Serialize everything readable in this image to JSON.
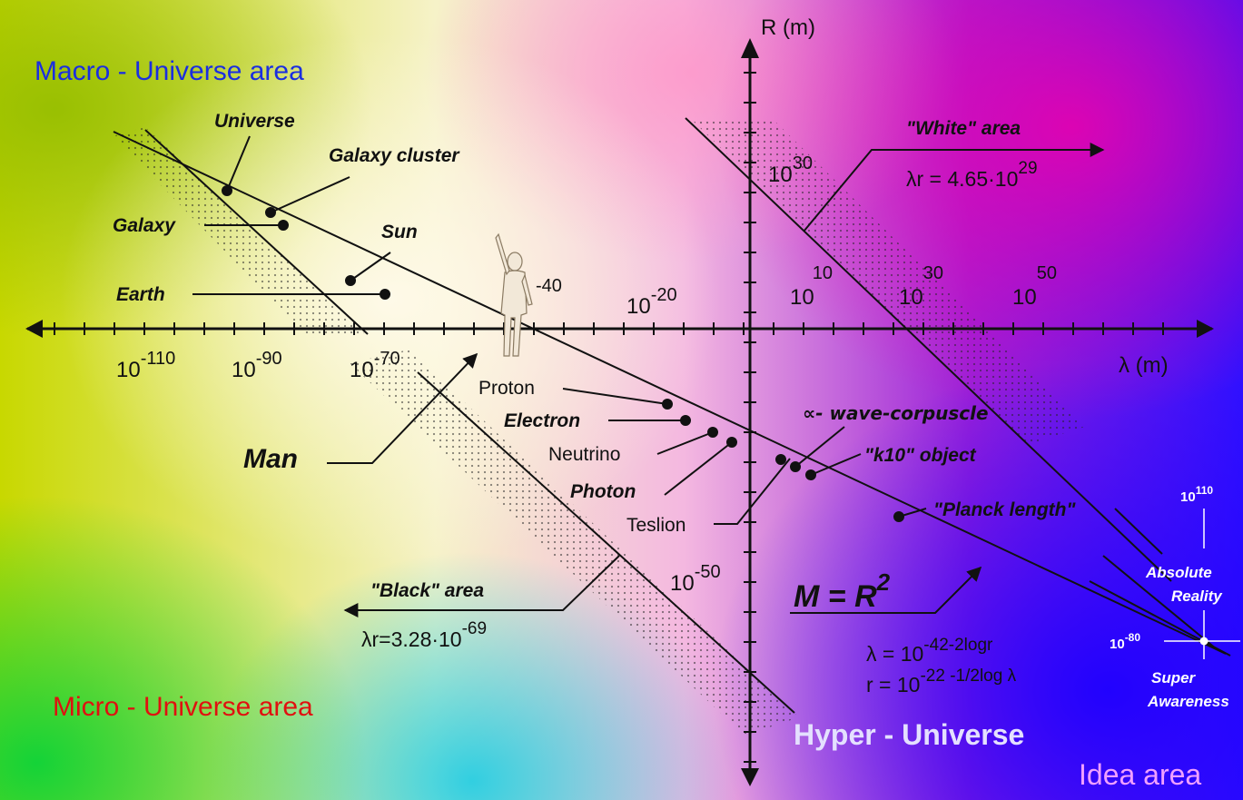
{
  "regions": {
    "macro": "Macro - Universe area",
    "micro": "Micro - Universe area",
    "hyper": "Hyper - Universe",
    "idea": "Idea area"
  },
  "axes": {
    "y_label": "R (m)",
    "x_label": "λ (m)"
  },
  "x_ticks": [
    {
      "base": "10",
      "exp": "-110"
    },
    {
      "base": "10",
      "exp": "-90"
    },
    {
      "base": "10",
      "exp": "-70"
    },
    {
      "base": "",
      "exp": "-40"
    },
    {
      "base": "10",
      "exp": "-20"
    },
    {
      "base": "10",
      "exp": "10"
    },
    {
      "base": "10",
      "exp": "30"
    },
    {
      "base": "10",
      "exp": "50"
    }
  ],
  "y_ticks": [
    {
      "base": "10",
      "exp": "30"
    },
    {
      "base": "10",
      "exp": "-50"
    }
  ],
  "macro_objects": [
    "Universe",
    "Galaxy cluster",
    "Galaxy",
    "Sun",
    "Earth"
  ],
  "man_label": "Man",
  "micro_objects": [
    "Proton",
    "Electron",
    "Neutrino",
    "Photon",
    "Teslion"
  ],
  "hyper_objects": {
    "wave": "∝- wave-corpuscle",
    "k10": "\"k10\" object",
    "planck": "\"Planck length\""
  },
  "white_area": {
    "title": "\"White\" area",
    "formula": "λr = 4.65·10",
    "formula_exp": "29"
  },
  "black_area": {
    "title": "\"Black\" area",
    "formula": "λr=3.28·10",
    "formula_exp": "-69"
  },
  "main_formula": {
    "lhs": "M = R",
    "exp": "2"
  },
  "lambda_formula": {
    "text": "λ = 10",
    "exp": "-42-2logr"
  },
  "r_formula": {
    "text": "r = 10",
    "exp": "-22 -1/2log λ"
  },
  "scale": {
    "top": {
      "base": "10",
      "exp": "110"
    },
    "bottom": {
      "base": "10",
      "exp": "-80"
    },
    "absolute": [
      "Absolute",
      "Reality"
    ],
    "super": [
      "Super",
      "Awareness"
    ]
  },
  "colors": {
    "macro_title": "#1a2ee0",
    "micro_title": "#e01010",
    "hyper_title": "#e4e0ff",
    "idea_title": "#f0a0ff",
    "ink": "#111111"
  }
}
